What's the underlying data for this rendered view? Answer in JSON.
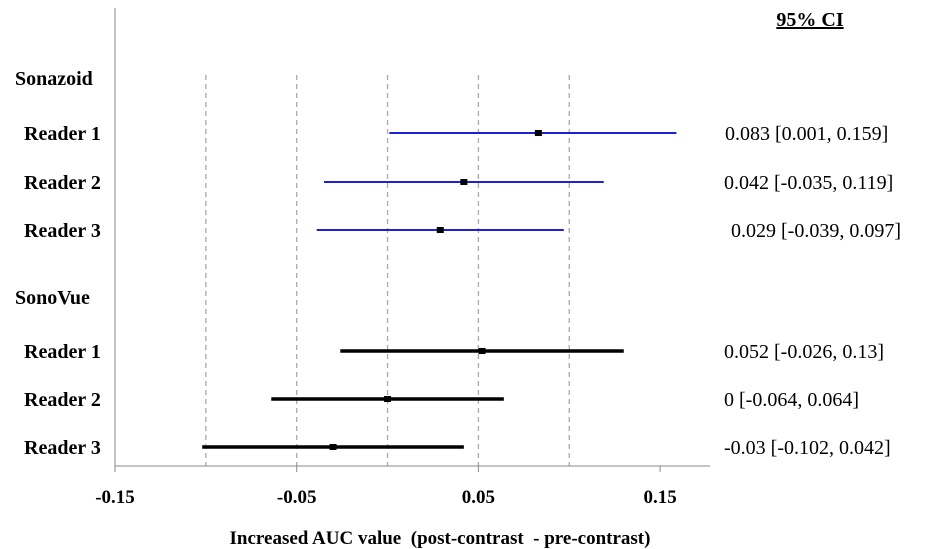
{
  "chart_data": {
    "type": "forest",
    "ci_header": "95% CI",
    "xlabel": "Increased AUC value  (post-contrast  - pre-contrast)",
    "x_ticks": [
      -0.15,
      -0.05,
      0.05,
      0.15
    ],
    "x_tick_labels": [
      "-0.15",
      "-0.05",
      "0.05",
      "0.15"
    ],
    "xlim": [
      -0.15,
      0.18
    ],
    "grid_lines": [
      -0.1,
      -0.05,
      0,
      0.05,
      0.1
    ],
    "groups": [
      {
        "name": "Sonazoid",
        "color": "#1f1fd6",
        "rows": [
          {
            "label": "Reader 1",
            "estimate": 0.083,
            "lower": 0.001,
            "upper": 0.159,
            "ci_text": "0.083 [0.001, 0.159]"
          },
          {
            "label": "Reader 2",
            "estimate": 0.042,
            "lower": -0.035,
            "upper": 0.119,
            "ci_text": "0.042 [-0.035, 0.119]"
          },
          {
            "label": "Reader 3",
            "estimate": 0.029,
            "lower": -0.039,
            "upper": 0.097,
            "ci_text": "0.029 [-0.039, 0.097]"
          }
        ]
      },
      {
        "name": "SonoVue",
        "color": "#000000",
        "rows": [
          {
            "label": "Reader 1",
            "estimate": 0.052,
            "lower": -0.026,
            "upper": 0.13,
            "ci_text": "0.052 [-0.026, 0.13]"
          },
          {
            "label": "Reader 2",
            "estimate": 0,
            "lower": -0.064,
            "upper": 0.064,
            "ci_text": "0 [-0.064, 0.064]"
          },
          {
            "label": "Reader 3",
            "estimate": -0.03,
            "lower": -0.102,
            "upper": 0.042,
            "ci_text": "-0.03 [-0.102, 0.042]"
          }
        ]
      }
    ]
  }
}
